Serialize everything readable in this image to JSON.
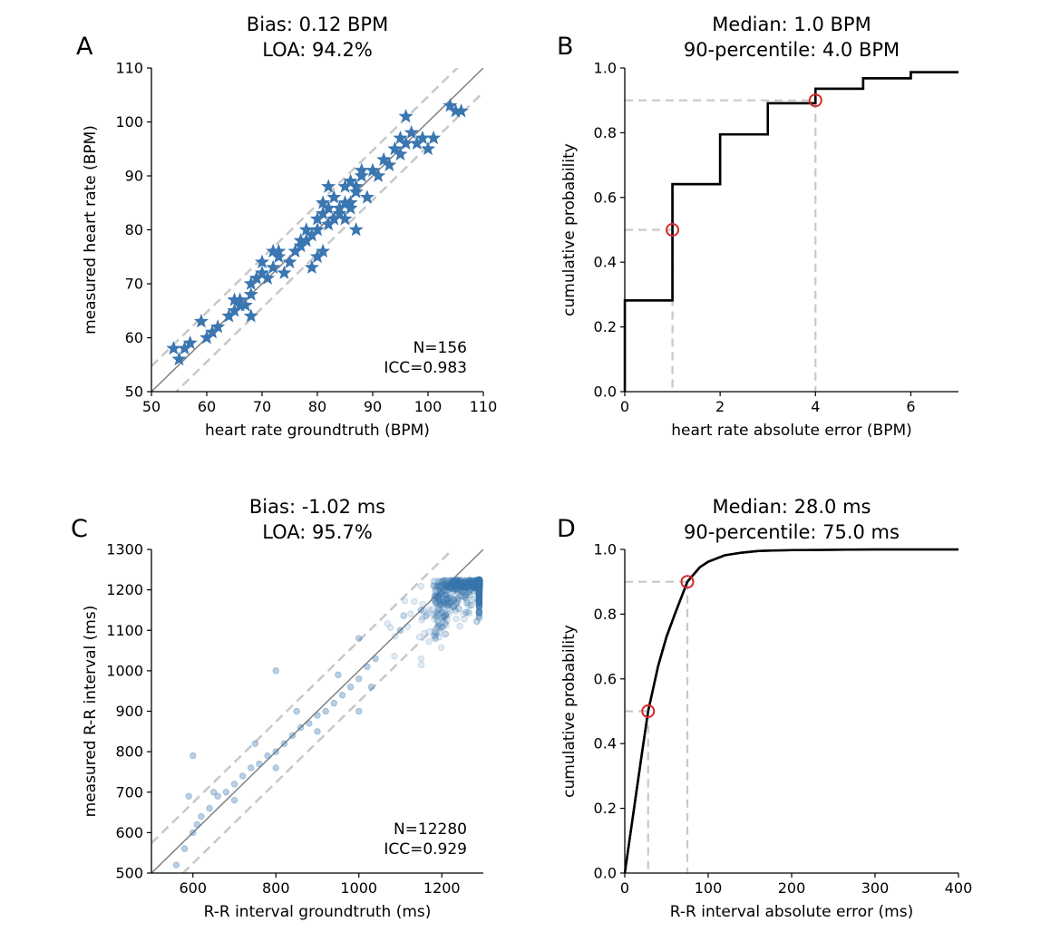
{
  "figure": {
    "panels": [
      {
        "letter": "A",
        "title_lines": [
          "Bias: 0.12 BPM",
          "LOA: 94.2%"
        ],
        "annotation_lines": [
          "N=156",
          "ICC=0.983"
        ]
      },
      {
        "letter": "B",
        "title_lines": [
          "Median: 1.0 BPM",
          "90-percentile: 4.0 BPM"
        ]
      },
      {
        "letter": "C",
        "title_lines": [
          "Bias: -1.02 ms",
          "LOA: 95.7%"
        ],
        "annotation_lines": [
          "N=12280",
          "ICC=0.929"
        ]
      },
      {
        "letter": "D",
        "title_lines": [
          "Median: 28.0 ms",
          "90-percentile: 75.0 ms"
        ]
      }
    ]
  },
  "colors": {
    "points": "#3a76b0",
    "ecdf": "#000000",
    "identity": "#808080",
    "limits": "#c8c8c8",
    "marker": "#d62728"
  },
  "chart_data": [
    {
      "type": "scatter",
      "id": "A",
      "title": "Bias: 0.12 BPM\nLOA: 94.2%",
      "xlabel": "heart rate groundtruth (BPM)",
      "ylabel": "measured heart rate (BPM)",
      "xlim": [
        50,
        110
      ],
      "ylim": [
        50,
        110
      ],
      "xticks": [
        50,
        60,
        70,
        80,
        90,
        100,
        110
      ],
      "yticks": [
        50,
        60,
        70,
        80,
        90,
        100,
        110
      ],
      "marker": "star",
      "n": 156,
      "icc": 0.983,
      "bias": 0.12,
      "loa_halfwidth": 4.6,
      "x": [
        54,
        55,
        57,
        56,
        59,
        61,
        60,
        62,
        65,
        64,
        66,
        65,
        67,
        68,
        66,
        68,
        69,
        70,
        68,
        71,
        72,
        70,
        73,
        72,
        74,
        75,
        73,
        76,
        77,
        78,
        77,
        79,
        78,
        80,
        80,
        81,
        82,
        81,
        80,
        83,
        82,
        84,
        85,
        83,
        86,
        85,
        86,
        87,
        84,
        88,
        87,
        86,
        88,
        85,
        90,
        92,
        93,
        94,
        95,
        95,
        96,
        97,
        98,
        96,
        99,
        100,
        101,
        104,
        105,
        106,
        82,
        81,
        79,
        87,
        89,
        91
      ],
      "y": [
        58,
        56,
        59,
        58,
        63,
        61,
        60,
        62,
        65,
        64,
        66,
        67,
        66,
        68,
        67,
        70,
        71,
        72,
        64,
        71,
        73,
        74,
        75,
        76,
        72,
        74,
        76,
        76,
        78,
        80,
        77,
        79,
        78,
        80,
        82,
        83,
        84,
        85,
        75,
        82,
        81,
        83,
        85,
        86,
        84,
        88,
        89,
        87,
        84,
        90,
        88,
        85,
        91,
        82,
        91,
        93,
        92,
        95,
        94,
        97,
        101,
        98,
        96,
        96,
        97,
        95,
        97,
        103,
        102,
        102,
        88,
        76,
        73,
        80,
        86,
        90
      ]
    },
    {
      "type": "line",
      "id": "B",
      "step": true,
      "title": "Median: 1.0 BPM\n90-percentile: 4.0 BPM",
      "xlabel": "heart rate absolute error (BPM)",
      "ylabel": "cumulative probability",
      "xlim": [
        0,
        7
      ],
      "ylim": [
        0,
        1.0
      ],
      "xticks": [
        0,
        2,
        4,
        6
      ],
      "yticks": [
        0.0,
        0.2,
        0.4,
        0.6,
        0.8,
        1.0
      ],
      "x": [
        0,
        0,
        1,
        1,
        2,
        2,
        3,
        3,
        4,
        4,
        5,
        5,
        6,
        6,
        7
      ],
      "y": [
        0,
        0.282,
        0.282,
        0.641,
        0.641,
        0.795,
        0.795,
        0.891,
        0.891,
        0.936,
        0.936,
        0.968,
        0.968,
        0.987,
        0.987
      ],
      "markers": [
        {
          "x": 1,
          "y": 0.5
        },
        {
          "x": 4,
          "y": 0.9
        }
      ]
    },
    {
      "type": "scatter",
      "id": "C",
      "title": "Bias: -1.02 ms\nLOA: 95.7%",
      "xlabel": "R-R interval groundtruth (ms)",
      "ylabel": "measured R-R interval (ms)",
      "xlim": [
        500,
        1300
      ],
      "ylim": [
        500,
        1300
      ],
      "xticks": [
        600,
        800,
        1000,
        1200
      ],
      "yticks": [
        500,
        600,
        700,
        800,
        900,
        1000,
        1100,
        1200,
        1300
      ],
      "marker": "circle",
      "alpha": 0.15,
      "n": 12280,
      "icc": 0.929,
      "bias": -1.02,
      "loa_halfwidth": 75,
      "x": [
        560,
        580,
        600,
        620,
        640,
        660,
        680,
        700,
        720,
        740,
        760,
        780,
        800,
        820,
        840,
        860,
        880,
        900,
        920,
        940,
        960,
        980,
        1000,
        1020,
        1040,
        1100,
        1150,
        1200,
        1250,
        1290,
        590,
        610,
        650,
        700,
        750,
        800,
        850,
        900,
        950,
        1000,
        1030,
        1180,
        1220,
        1280,
        600,
        800,
        1000
      ],
      "y": [
        520,
        560,
        600,
        640,
        660,
        690,
        700,
        720,
        740,
        760,
        770,
        790,
        800,
        820,
        840,
        860,
        870,
        890,
        900,
        920,
        940,
        960,
        980,
        1010,
        1030,
        1100,
        1150,
        1190,
        1210,
        1220,
        690,
        620,
        700,
        680,
        820,
        760,
        900,
        850,
        990,
        1080,
        960,
        1210,
        1180,
        1215,
        790,
        1000,
        900
      ]
    },
    {
      "type": "line",
      "id": "D",
      "title": "Median: 28.0 ms\n90-percentile: 75.0 ms",
      "xlabel": "R-R interval absolute error (ms)",
      "ylabel": "cumulative probability",
      "xlim": [
        0,
        400
      ],
      "ylim": [
        0,
        1.0
      ],
      "xticks": [
        0,
        100,
        200,
        300,
        400
      ],
      "yticks": [
        0.0,
        0.2,
        0.4,
        0.6,
        0.8,
        1.0
      ],
      "x": [
        0,
        10,
        20,
        28,
        40,
        50,
        60,
        75,
        90,
        100,
        120,
        140,
        160,
        180,
        200,
        250,
        300,
        400
      ],
      "y": [
        0,
        0.18,
        0.36,
        0.5,
        0.64,
        0.73,
        0.8,
        0.9,
        0.945,
        0.962,
        0.982,
        0.99,
        0.995,
        0.997,
        0.998,
        0.999,
        1.0,
        1.0
      ],
      "markers": [
        {
          "x": 28,
          "y": 0.5
        },
        {
          "x": 75,
          "y": 0.9
        }
      ]
    }
  ]
}
